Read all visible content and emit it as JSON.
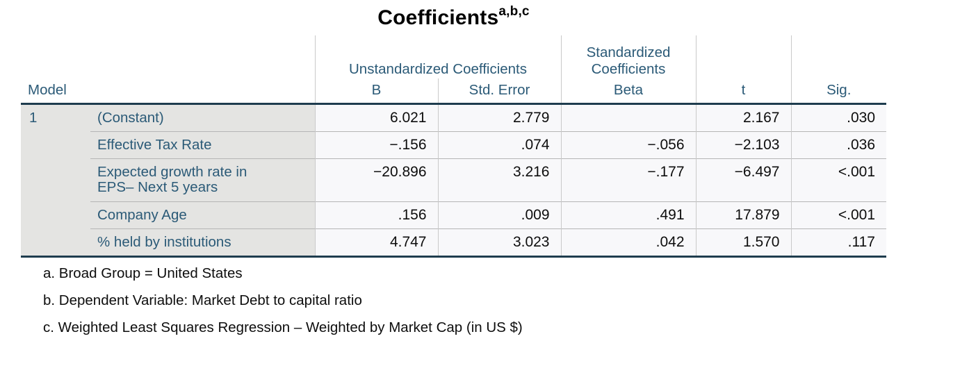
{
  "title": {
    "text": "Coefficients",
    "superscript": "a,b,c"
  },
  "table": {
    "model_header": "Model",
    "model_value": "1",
    "spanners": {
      "unstandardized": "Unstandardized Coefficients",
      "standardized": "Standardized Coefficients"
    },
    "columns": {
      "b": "B",
      "std_error": "Std. Error",
      "beta": "Beta",
      "t": "t",
      "sig": "Sig."
    },
    "rows": [
      {
        "label": "(Constant)",
        "b": "6.021",
        "std_error": "2.779",
        "beta": "",
        "t": "2.167",
        "sig": ".030"
      },
      {
        "label": "Effective Tax Rate",
        "b": "−.156",
        "std_error": ".074",
        "beta": "−.056",
        "t": "−2.103",
        "sig": ".036"
      },
      {
        "label": "Expected growth rate in EPS– Next 5 years",
        "b": "−20.896",
        "std_error": "3.216",
        "beta": "−.177",
        "t": "−6.497",
        "sig": "<.001"
      },
      {
        "label": "Company Age",
        "b": ".156",
        "std_error": ".009",
        "beta": ".491",
        "t": "17.879",
        "sig": "<.001"
      },
      {
        "label": "% held by institutions",
        "b": "4.747",
        "std_error": "3.023",
        "beta": ".042",
        "t": "1.570",
        "sig": ".117"
      }
    ]
  },
  "footnotes": [
    "a. Broad Group = United States",
    "b. Dependent Variable: Market Debt to capital ratio",
    "c. Weighted Least Squares Regression – Weighted by Market Cap (in US $)"
  ],
  "colors": {
    "accent": "#2b5a77",
    "rule_dark": "#1e3c4e",
    "label_bg": "#e4e4e2",
    "cell_bg": "#f8f8fa",
    "grid_h": "#b5b5b5",
    "grid_v": "#c9c9c9",
    "text_black": "#0d0d0d"
  }
}
